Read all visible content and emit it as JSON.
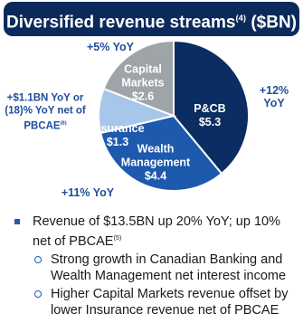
{
  "chart_data": {
    "type": "pie",
    "title": "Diversified revenue streams",
    "title_note": "(4)",
    "title_unit": "($BN)",
    "categories": [
      "P&CB",
      "Wealth Management",
      "Insurance",
      "Capital Markets"
    ],
    "values": [
      5.3,
      4.4,
      1.3,
      2.6
    ],
    "value_labels": [
      "$5.3",
      "$4.4",
      "$1.3",
      "$2.6"
    ],
    "colors": [
      "#0c2d62",
      "#1d59ad",
      "#a7c7ea",
      "#9fa4a9"
    ],
    "annotations": [
      {
        "lines": [
          "+12%",
          "YoY"
        ]
      },
      {
        "lines": [
          "+11% YoY"
        ]
      },
      {
        "lines": [
          "+$1.1BN YoY or",
          "(18)% YoY net of",
          "PBCAE"
        ],
        "note": "(8)"
      },
      {
        "lines": [
          "+5% YoY"
        ]
      }
    ]
  },
  "bullets": [
    {
      "text": "Revenue of $13.5BN up 20% YoY; up 10% net of PBCAE",
      "note": "(5)",
      "sub": [
        "Strong growth in Canadian Banking and Wealth Management net interest income",
        "Higher Capital Markets revenue offset by lower Insurance revenue net of PBCAE"
      ]
    }
  ]
}
